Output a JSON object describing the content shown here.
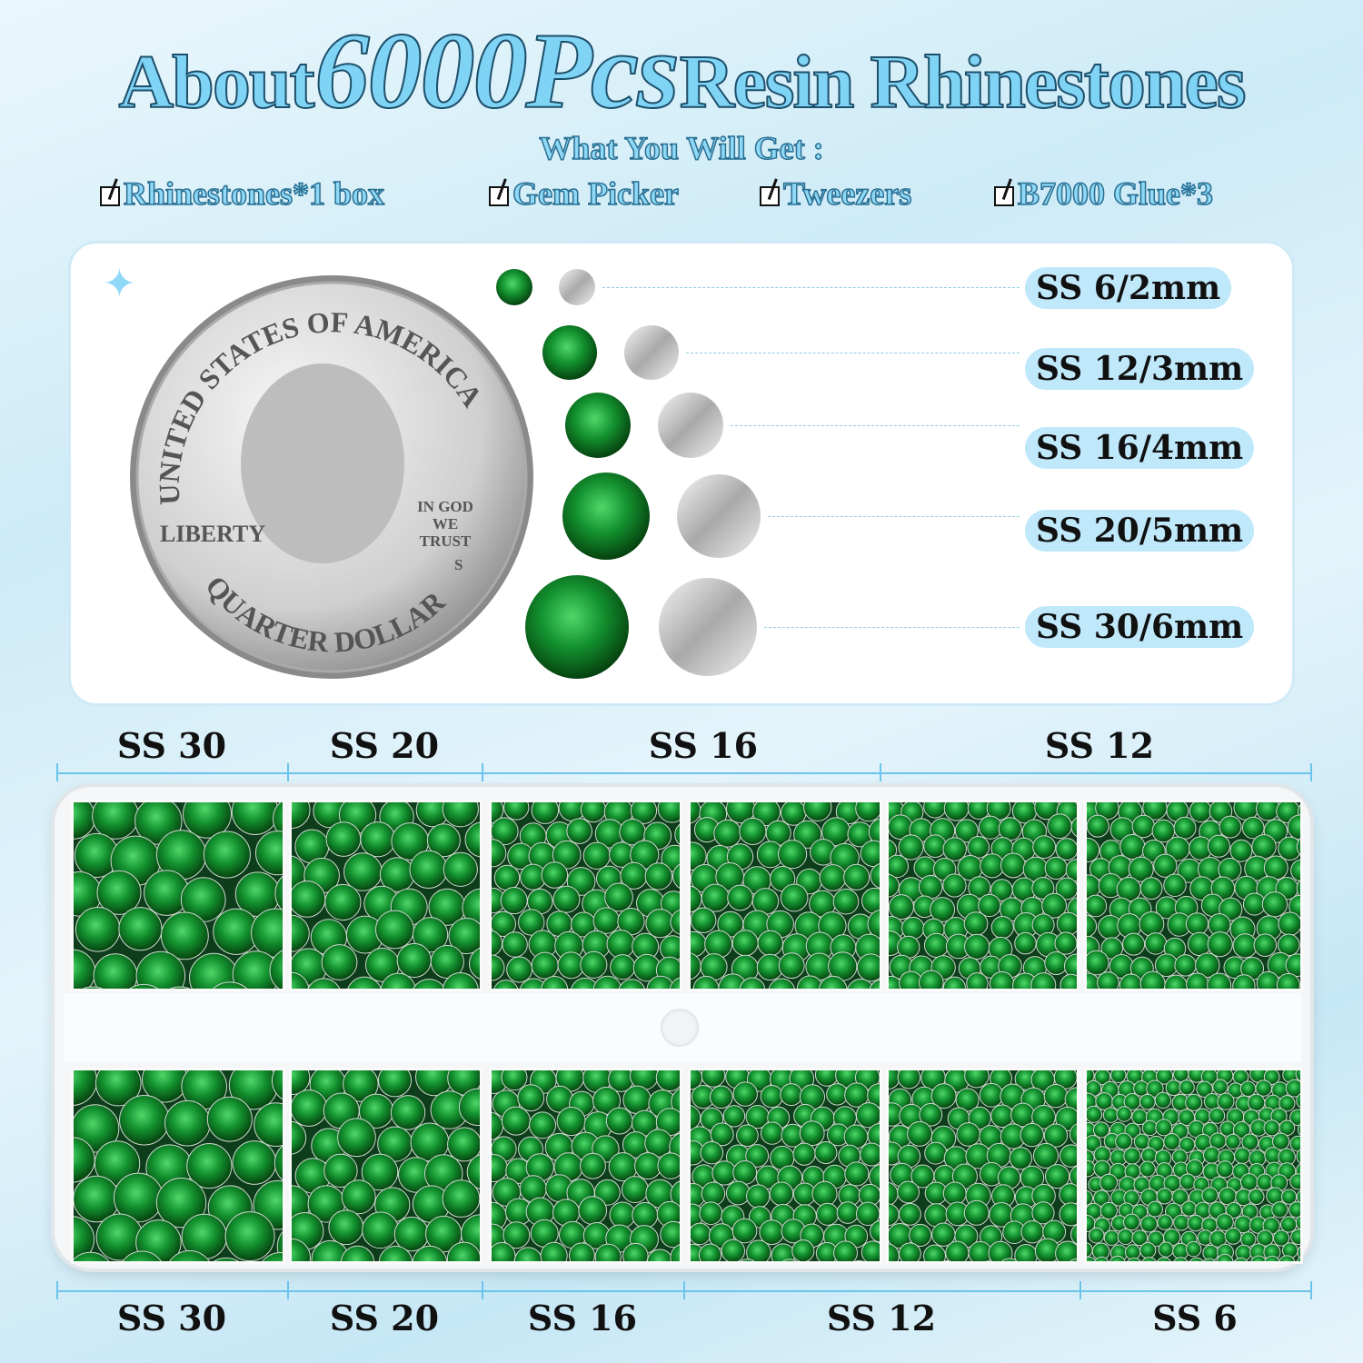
{
  "title": {
    "prefix": "About",
    "highlight": "6000Pcs",
    "suffix": "Resin Rhinestones"
  },
  "subtitle": "What You Will Get :",
  "checklist": [
    "Rhinestones*1 box",
    "Gem Picker",
    "Tweezers",
    "B7000 Glue*3"
  ],
  "coin": {
    "top_text": "UNITED STATES OF AMERICA",
    "left_text": "LIBERTY",
    "motto": "IN GOD WE TRUST",
    "mint": "S",
    "bottom_text": "QUARTER DOLLAR"
  },
  "sizes": [
    "SS 6/2mm",
    "SS 12/3mm",
    "SS 16/4mm",
    "SS 20/5mm",
    "SS 30/6mm"
  ],
  "top_dimensions": [
    "SS 30",
    "SS 20",
    "SS 16",
    "SS 12"
  ],
  "bottom_dimensions": [
    "SS 30",
    "SS 20",
    "SS 16",
    "SS 12",
    "SS 6"
  ],
  "colors": {
    "gem": "#0f7a2a",
    "accent": "#7fd3f5",
    "pill": "#bfe8fb"
  }
}
